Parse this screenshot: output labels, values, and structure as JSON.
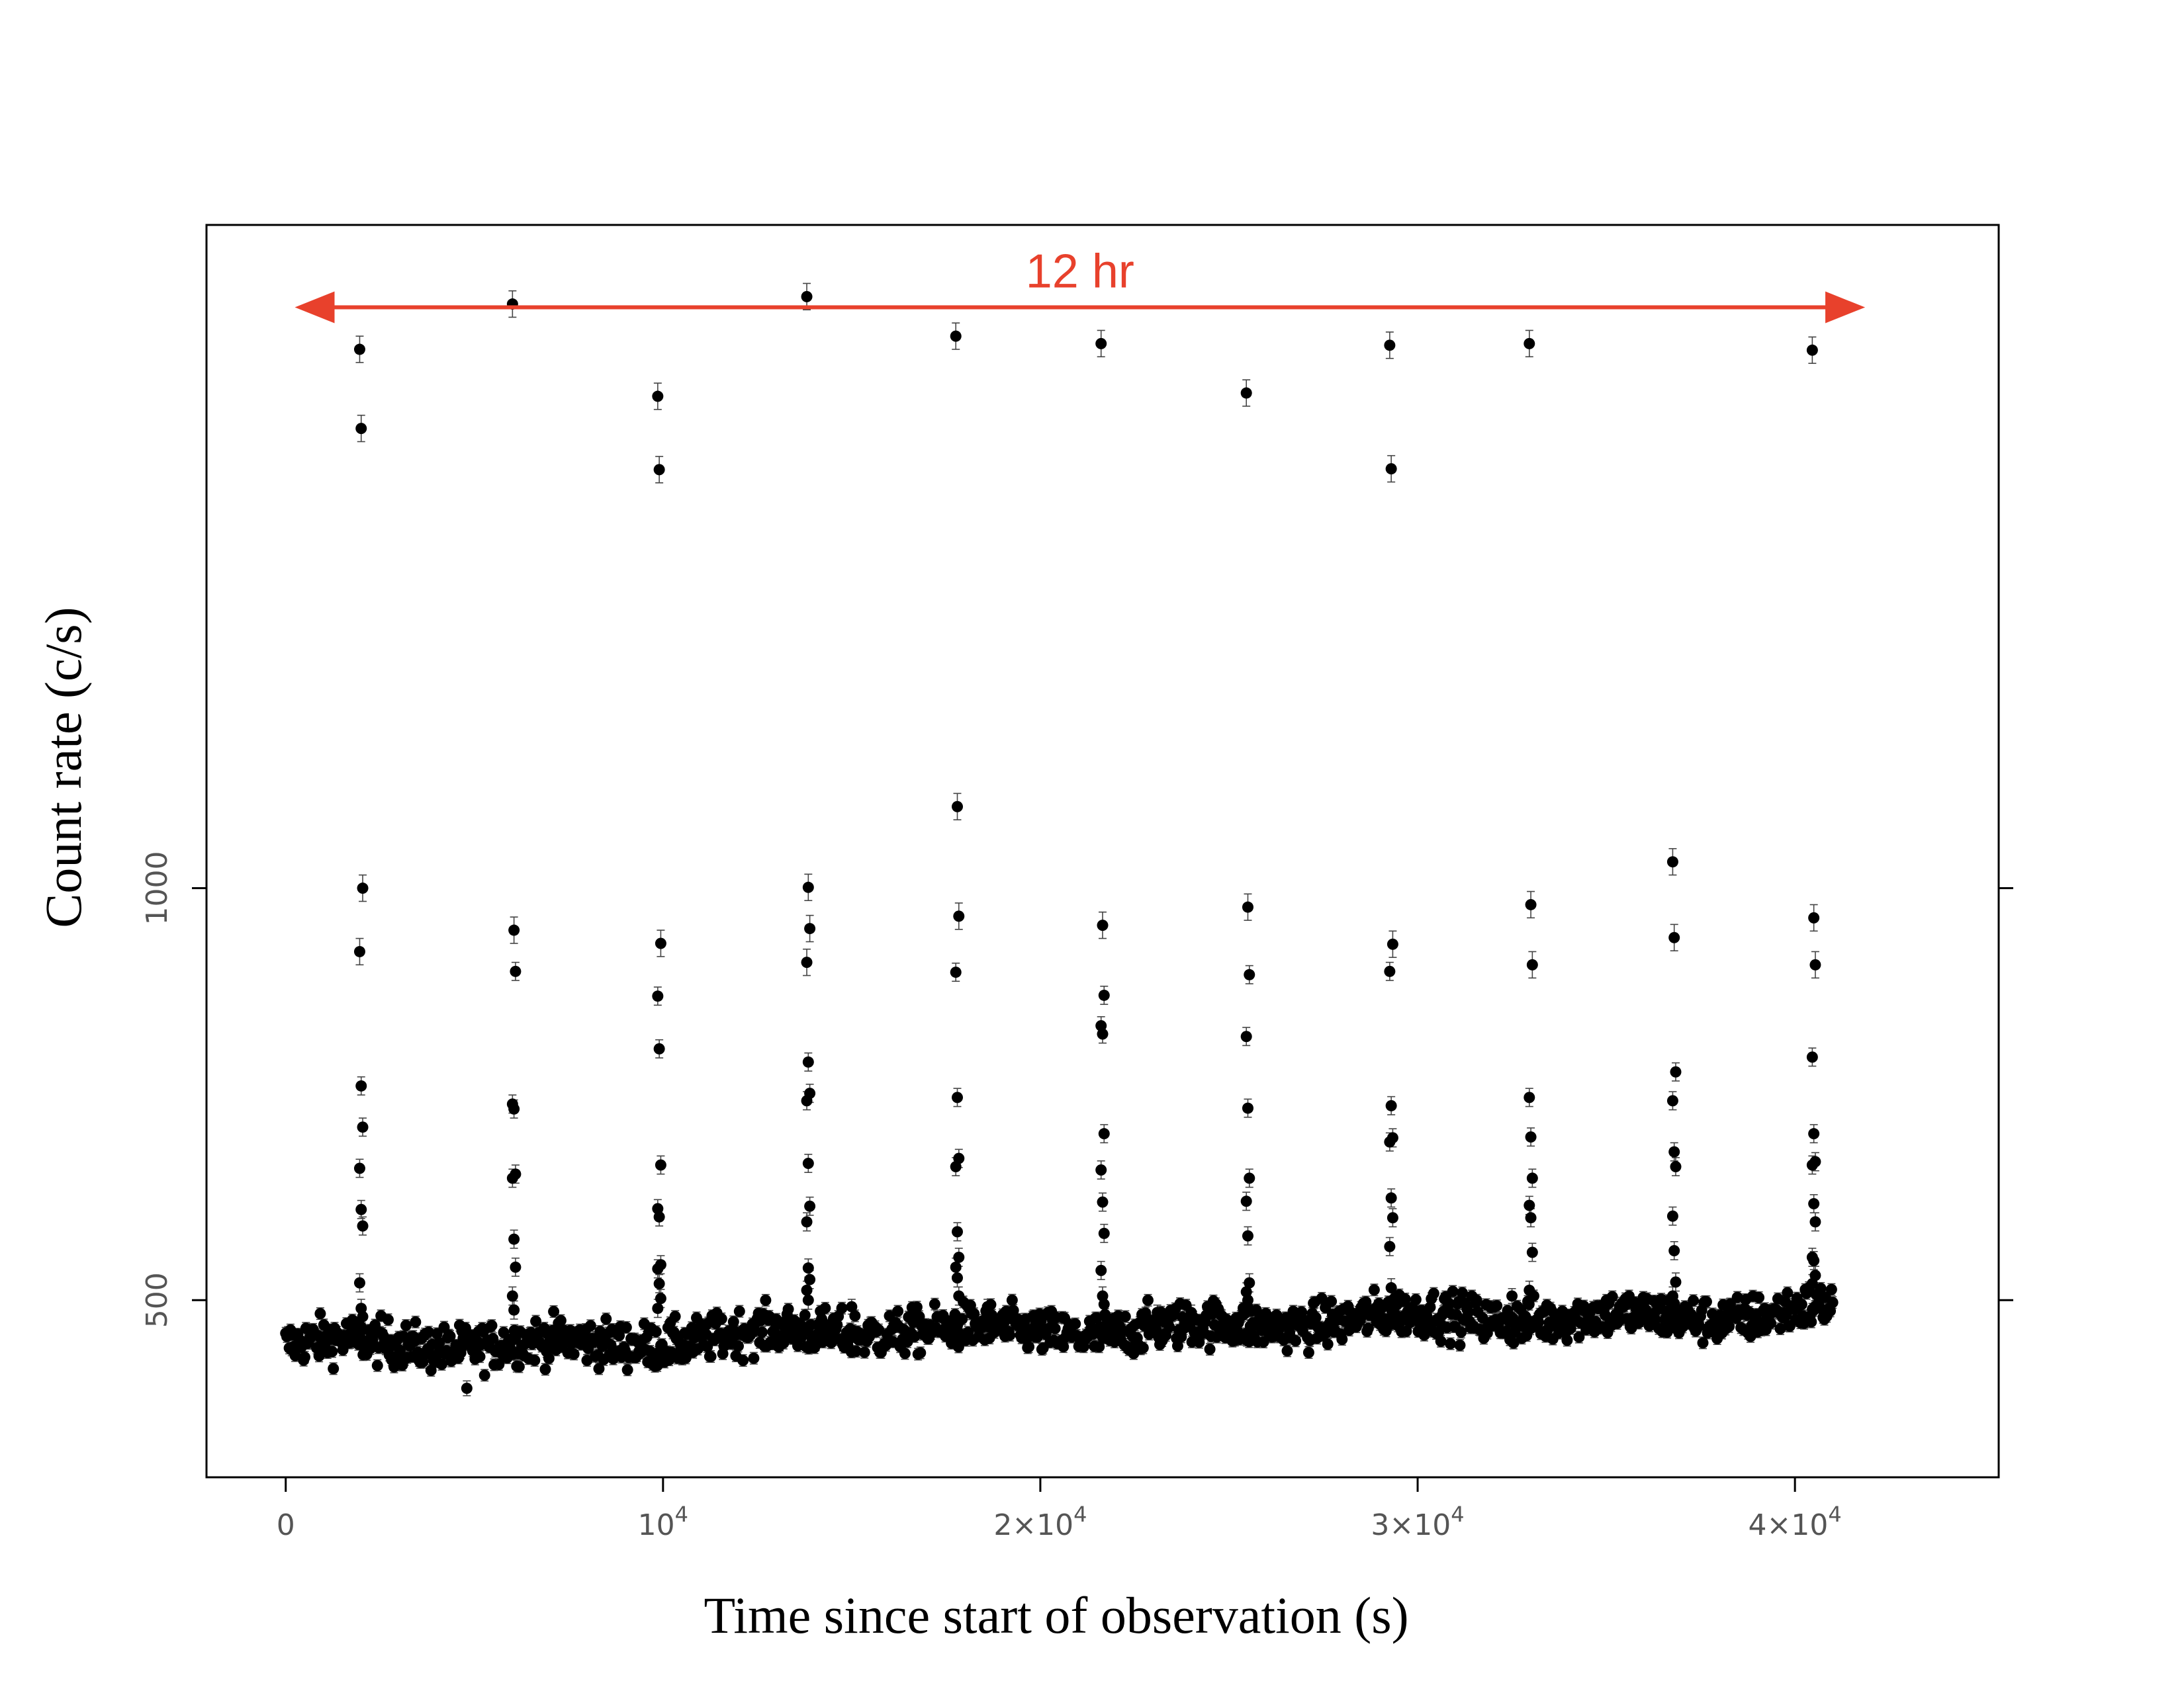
{
  "chart_data": {
    "type": "scatter",
    "title": "",
    "xlabel": "Time since start of observation (s)",
    "ylabel": "Count rate (c/s)",
    "xlim": [
      -2100,
      45400
    ],
    "ylim": [
      285,
      1805
    ],
    "grid": false,
    "x_ticks": [
      {
        "value": 0,
        "label": "0",
        "base": "",
        "exp": ""
      },
      {
        "value": 10000,
        "label": "",
        "base": "10",
        "exp": "4"
      },
      {
        "value": 20000,
        "label": "",
        "base": "2×10",
        "exp": "4"
      },
      {
        "value": 30000,
        "label": "",
        "base": "3×10",
        "exp": "4"
      },
      {
        "value": 40000,
        "label": "",
        "base": "4×10",
        "exp": "4"
      }
    ],
    "y_ticks": [
      {
        "value": 500,
        "label": "500"
      },
      {
        "value": 1000,
        "label": "1000"
      }
    ],
    "annotation": {
      "text": "12 hr",
      "color": "#e8412c",
      "x_start": 400,
      "x_end": 41700,
      "y": 1705
    },
    "baseline": {
      "x_start": 0,
      "x_end": 41000,
      "rate_start": 442,
      "rate_end": 488,
      "scatter": 14,
      "n_points": 1300,
      "error": 7
    },
    "flares": [
      {
        "x": 2000,
        "values": [
          1654,
          1558,
          1000,
          923,
          760,
          710,
          660,
          610,
          590,
          521,
          490,
          480
        ]
      },
      {
        "x": 6050,
        "values": [
          1709,
          949,
          899,
          738,
          732,
          653,
          648,
          574,
          540,
          505,
          488
        ]
      },
      {
        "x": 9900,
        "values": [
          1597,
          1508,
          933,
          869,
          805,
          664,
          611,
          601,
          543,
          538,
          520,
          502,
          490
        ]
      },
      {
        "x": 13850,
        "values": [
          1718,
          1001,
          951,
          910,
          789,
          751,
          742,
          666,
          614,
          595,
          539,
          525,
          512,
          500
        ]
      },
      {
        "x": 17800,
        "values": [
          1670,
          1099,
          966,
          898,
          746,
          672,
          662,
          583,
          552,
          540,
          527,
          505
        ]
      },
      {
        "x": 21650,
        "values": [
          1661,
          955,
          870,
          833,
          823,
          702,
          658,
          619,
          581,
          536,
          505,
          495
        ]
      },
      {
        "x": 25500,
        "values": [
          1601,
          977,
          895,
          820,
          733,
          648,
          620,
          578,
          521,
          510,
          500
        ]
      },
      {
        "x": 29300,
        "values": [
          1659,
          1509,
          932,
          899,
          736,
          697,
          692,
          624,
          600,
          565,
          515,
          500
        ]
      },
      {
        "x": 33000,
        "values": [
          1661,
          980,
          907,
          746,
          698,
          648,
          615,
          600,
          558,
          512
        ]
      },
      {
        "x": 36800,
        "values": [
          1032,
          940,
          777,
          742,
          680,
          662,
          602,
          560,
          522,
          505
        ]
      },
      {
        "x": 40500,
        "values": [
          1653,
          964,
          907,
          795,
          702,
          668,
          664,
          617,
          595,
          552,
          548,
          530,
          520
        ]
      }
    ],
    "outliers": [
      {
        "x": 4800,
        "value": 393
      },
      {
        "x": 15000,
        "value": 492
      },
      {
        "x": 18600,
        "value": 492
      },
      {
        "x": 23100,
        "value": 485
      },
      {
        "x": 24000,
        "value": 485
      },
      {
        "x": 32500,
        "value": 505
      }
    ],
    "point_color": "#000000",
    "errorbar_color": "#444444"
  }
}
